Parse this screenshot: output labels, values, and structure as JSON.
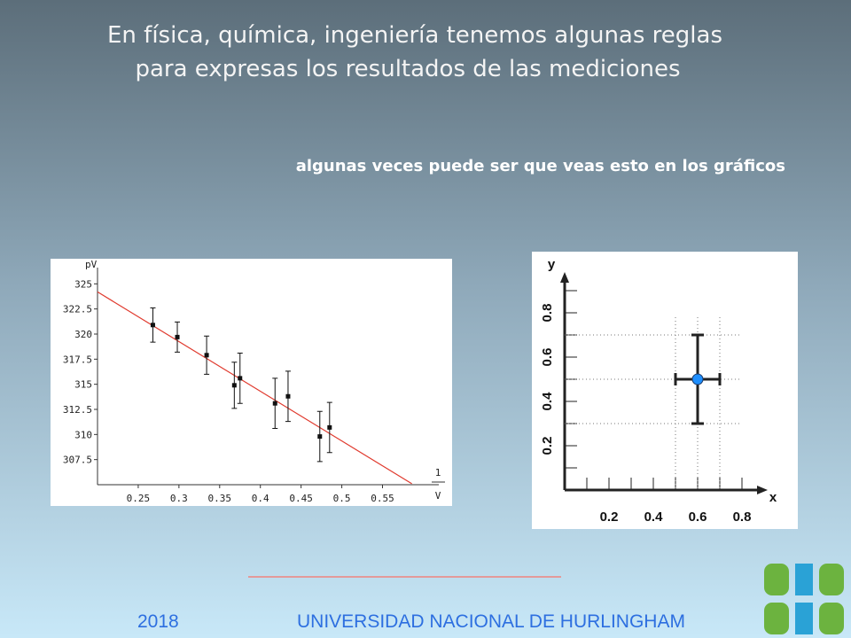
{
  "slide": {
    "title": [
      "En física, química, ingeniería tenemos algunas reglas",
      "para expresas los resultados de las mediciones"
    ],
    "subtitle": "algunas veces puede ser que veas esto en los gráficos",
    "footer": {
      "year": "2018",
      "institution": "UNIVERSIDAD NACIONAL DE HURLINGHAM"
    }
  },
  "chart_data": [
    {
      "type": "scatter",
      "ylabel": "pV",
      "xlabel": {
        "numerator": "1",
        "denominator": "V"
      },
      "x": [
        0.268,
        0.298,
        0.334,
        0.368,
        0.375,
        0.418,
        0.434,
        0.473,
        0.485
      ],
      "values": [
        320.9,
        319.7,
        317.9,
        314.9,
        315.6,
        313.1,
        313.8,
        309.8,
        310.7
      ],
      "errors": [
        1.7,
        1.5,
        1.9,
        2.3,
        2.5,
        2.5,
        2.5,
        2.5,
        2.5
      ],
      "color": "#111111",
      "fit": {
        "x": [
          0.2,
          0.586
        ],
        "values": [
          324.2,
          305.1
        ],
        "color": "#e03a2e"
      },
      "xlim": [
        0.2,
        0.63
      ],
      "ylim": [
        305,
        327.5
      ],
      "xticks": [
        0.25,
        0.3,
        0.35,
        0.4,
        0.45,
        0.5,
        0.55
      ],
      "yticks": [
        307.5,
        310,
        312.5,
        315,
        317.5,
        320,
        322.5,
        325
      ]
    },
    {
      "type": "scatter",
      "xlabel": "x",
      "ylabel": "y",
      "x": [
        0.6
      ],
      "values": [
        0.5
      ],
      "x_errors": [
        0.1
      ],
      "errors": [
        0.2
      ],
      "color": "#1e8fff",
      "xlim": [
        0,
        0.9
      ],
      "ylim": [
        0,
        0.96
      ],
      "xticks": [
        0.2,
        0.4,
        0.6,
        0.8
      ],
      "minor_xticks": [
        0.1,
        0.3,
        0.5,
        0.7
      ],
      "yticks": [
        0.2,
        0.4,
        0.6,
        0.8
      ],
      "minor_yticks": [
        0.1,
        0.3,
        0.5,
        0.7,
        0.9
      ]
    }
  ]
}
